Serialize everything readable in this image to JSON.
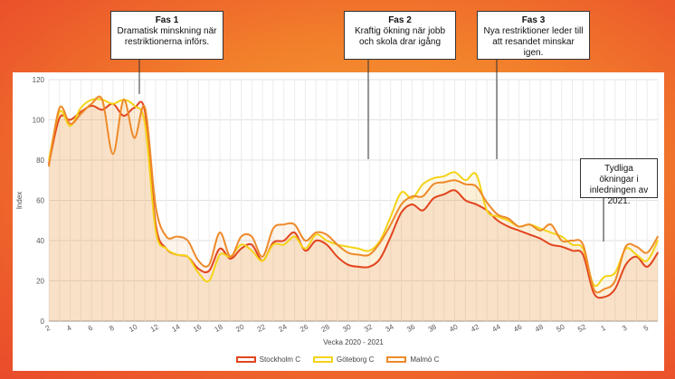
{
  "chart_data": {
    "type": "line",
    "xlabel": "Vecka 2020 - 2021",
    "ylabel": "Index",
    "ylim": [
      0,
      120
    ],
    "yticks": [
      0,
      20,
      40,
      60,
      80,
      100,
      120
    ],
    "grid": true,
    "legend_position": "bottom",
    "x_tick_labels": [
      "2",
      "4",
      "6",
      "8",
      "10",
      "12",
      "14",
      "16",
      "18",
      "20",
      "22",
      "24",
      "26",
      "28",
      "30",
      "32",
      "34",
      "36",
      "38",
      "40",
      "42",
      "44",
      "46",
      "48",
      "50",
      "52",
      "1",
      "3",
      "5"
    ],
    "x": [
      "2",
      "3",
      "4",
      "5",
      "6",
      "7",
      "8",
      "9",
      "10",
      "11",
      "12",
      "13",
      "14",
      "15",
      "16",
      "17",
      "18",
      "19",
      "20",
      "21",
      "22",
      "23",
      "24",
      "25",
      "26",
      "27",
      "28",
      "29",
      "30",
      "31",
      "32",
      "33",
      "34",
      "35",
      "36",
      "37",
      "38",
      "39",
      "40",
      "41",
      "42",
      "43",
      "44",
      "45",
      "46",
      "47",
      "48",
      "49",
      "50",
      "51",
      "52",
      "53",
      "1",
      "2",
      "3",
      "4",
      "5",
      "6"
    ],
    "series": [
      {
        "name": "Stockholm C",
        "color": "#e2451f",
        "values": [
          78,
          101,
          100,
          104,
          107,
          105,
          108,
          102,
          106,
          104,
          48,
          36,
          33,
          32,
          26,
          25,
          36,
          31,
          36,
          38,
          30,
          39,
          40,
          44,
          35,
          40,
          38,
          32,
          28,
          27,
          27,
          31,
          42,
          54,
          58,
          55,
          61,
          63,
          65,
          60,
          58,
          55,
          50,
          47,
          45,
          43,
          41,
          38,
          37,
          35,
          33,
          14,
          12,
          16,
          28,
          32,
          27,
          34
        ]
      },
      {
        "name": "Göteborg C",
        "color": "#f5d318",
        "values": [
          80,
          104,
          97,
          106,
          110,
          110,
          108,
          110,
          107,
          98,
          45,
          36,
          33,
          32,
          24,
          20,
          33,
          32,
          38,
          35,
          30,
          38,
          38,
          42,
          36,
          43,
          40,
          38,
          37,
          36,
          35,
          40,
          52,
          64,
          61,
          68,
          71,
          72,
          74,
          70,
          73,
          55,
          52,
          50,
          47,
          48,
          46,
          44,
          42,
          38,
          36,
          18,
          22,
          24,
          36,
          33,
          30,
          40
        ]
      },
      {
        "name": "Malmö C",
        "color": "#ee8a2a",
        "values": [
          77,
          106,
          98,
          103,
          108,
          110,
          83,
          110,
          91,
          106,
          57,
          42,
          42,
          40,
          30,
          28,
          44,
          32,
          42,
          42,
          32,
          46,
          48,
          48,
          40,
          44,
          43,
          38,
          34,
          33,
          33,
          39,
          48,
          58,
          62,
          62,
          68,
          69,
          70,
          68,
          67,
          59,
          53,
          51,
          47,
          48,
          45,
          48,
          40,
          40,
          38,
          16,
          16,
          20,
          37,
          37,
          34,
          42
        ]
      }
    ]
  },
  "callouts": [
    {
      "title": "Fas 1",
      "text": "Dramatisk minskning när\nrestriktionerna införs."
    },
    {
      "title": "Fas 2",
      "text": "Kraftig ökning när jobb\noch skola drar igång"
    },
    {
      "title": "Fas 3",
      "text": "Nya restriktioner leder till\natt resandet minskar igen."
    },
    {
      "title": "",
      "text": "Tydliga ökningar i\ninledningen av\n2021."
    }
  ]
}
